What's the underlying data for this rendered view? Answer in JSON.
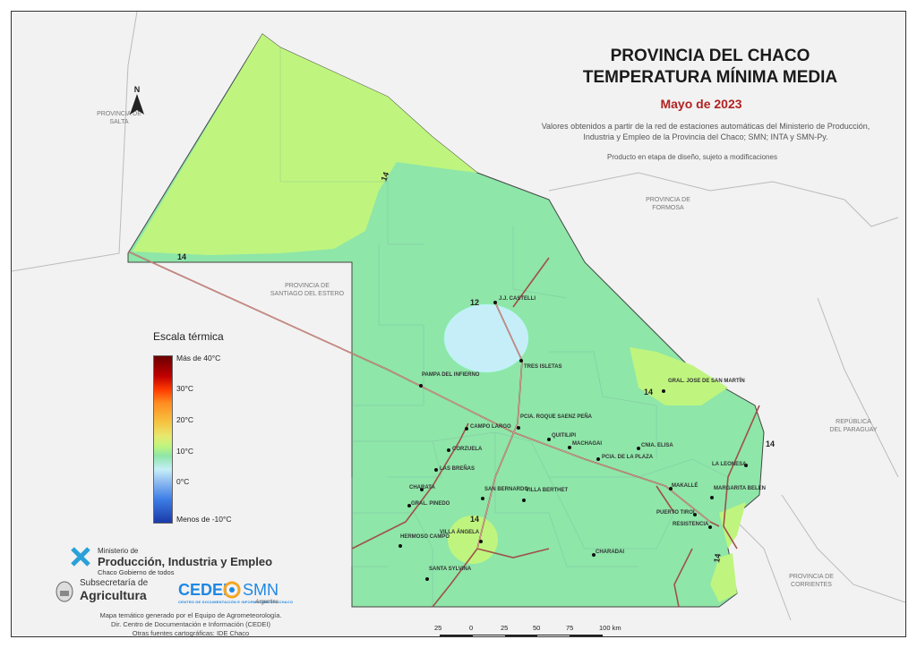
{
  "title": {
    "line1": "PROVINCIA DEL CHACO",
    "line2": "TEMPERATURA MÍNIMA MEDIA"
  },
  "subtitle": "Mayo de 2023",
  "description": "Valores obtenidos a partir de la red de estaciones automáticas del Ministerio de Producción, Industria y Empleo de la Provincia del Chaco; SMN; INTA y SMN-Py.",
  "note": "Producto en etapa de diseño, sujeto a modificaciones",
  "north_label": "N",
  "provinces": {
    "salta": [
      "PROVINCIA DE",
      "SALTA"
    ],
    "formosa": [
      "PROVINCIA DE",
      "FORMOSA"
    ],
    "santiago": [
      "PROVINCIA DE",
      "SANTIAGO DEL ESTERO"
    ],
    "paraguay": [
      "REPÚBLICA",
      "DEL PARAGUAY"
    ],
    "corrientes": [
      "PROVINCIA DE",
      "CORRIENTES"
    ]
  },
  "legend": {
    "title": "Escala térmica",
    "labels": [
      "Más de 40°C",
      "30°C",
      "20°C",
      "10°C",
      "0°C",
      "Menos de -10°C"
    ]
  },
  "isolines": [
    "14",
    "14",
    "12",
    "14",
    "14",
    "14",
    "14"
  ],
  "cities": [
    "J.J. CASTELLI",
    "TRES ISLETAS",
    "PAMPA DEL INFIERNO",
    "GRAL. JOSE DE SAN MARTÍN",
    "PCIA. ROQUE SAENZ PEÑA",
    "CAMPO LARGO",
    "QUITILIPI",
    "MACHAGAI",
    "CNIA. ELISA",
    "PCIA. DE LA PLAZA",
    "LA LEONESA",
    "CORZUELA",
    "LAS BREÑAS",
    "CHARATA",
    "GRAL. PINEDO",
    "SAN BERNARDO",
    "VILLA BERTHET",
    "MAKALLÉ",
    "MARGARITA BELEN",
    "PUERTO TIROL",
    "RESISTENCIA",
    "HERMOSO CAMPO",
    "VILLA ÁNGELA",
    "CHARADAI",
    "SANTA SYLVINA"
  ],
  "logos": {
    "ministry_small": "Ministerio de",
    "ministry_big": "Producción, Industria y Empleo",
    "ministry_tag": "Chaco Gobierno de todos",
    "sub_a": "Subsecretaría de",
    "sub_b": "Agricultura",
    "cedei": "CEDEI",
    "cedei_sub": "CENTRO DE DOCUMENTACIÓN E INFORMACIÓN DEL CHACO",
    "smn": "SMN",
    "smn_sub": "Argentina"
  },
  "credits": [
    "Mapa temático generado por el Equipo de Agrometeorología.",
    "Dir. Centro de Documentación e Información (CEDEI)",
    "Otras fuentes cartográficas: IDE Chaco"
  ],
  "scalebar": [
    "25",
    "0",
    "25",
    "50",
    "75",
    "100 km"
  ],
  "colors": {
    "green_main": "#8ee6a8",
    "green_light": "#bff57e",
    "cyan_cold": "#c6eef8",
    "road": "#a0504a"
  }
}
